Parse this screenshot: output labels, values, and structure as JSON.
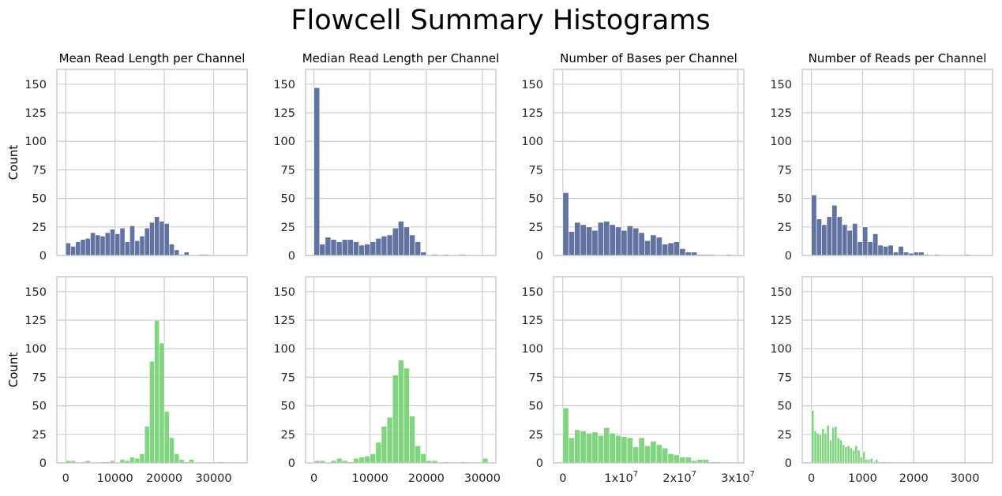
{
  "figure": {
    "title": "Flowcell Summary Histograms",
    "colors": {
      "top": "#5a6b9c",
      "bottom": "#6cce6a",
      "grid": "#cccccc",
      "spine": "#cccccc"
    }
  },
  "chart_data": [
    {
      "type": "bar",
      "subtype": "histogram",
      "row": 1,
      "col": 1,
      "title": "Mean Read Length per Channel",
      "ylabel": "Count",
      "ylim": [
        0,
        163
      ],
      "yticks": [
        0,
        25,
        50,
        75,
        100,
        125,
        150
      ],
      "xlim": [
        -1800,
        36800
      ],
      "xticks": [
        0,
        10000,
        20000,
        30000
      ],
      "show_xticks": false,
      "bin_start": 0,
      "bin_width": 1000,
      "color": "top",
      "values": [
        11,
        8,
        12,
        14,
        15,
        20,
        18,
        17,
        20,
        23,
        19,
        24,
        12,
        26,
        13,
        17,
        24,
        29,
        34,
        30,
        28,
        10,
        5,
        1,
        3,
        0,
        0,
        1,
        1,
        0,
        0,
        0,
        0,
        0,
        0
      ]
    },
    {
      "type": "bar",
      "subtype": "histogram",
      "row": 1,
      "col": 2,
      "title": "Median Read Length per Channel",
      "ylabel": "",
      "ylim": [
        0,
        163
      ],
      "yticks": [
        0,
        25,
        50,
        75,
        100,
        125,
        150
      ],
      "xlim": [
        -1500,
        32400
      ],
      "xticks": [
        0,
        10000,
        20000,
        30000
      ],
      "show_xticks": false,
      "bin_start": 0,
      "bin_width": 1000,
      "color": "top",
      "values": [
        147,
        10,
        16,
        14,
        12,
        14,
        14,
        12,
        9,
        10,
        12,
        15,
        17,
        18,
        24,
        30,
        25,
        18,
        12,
        3,
        0,
        1,
        0,
        1,
        0,
        0,
        1,
        0,
        0,
        0,
        0
      ]
    },
    {
      "type": "bar",
      "subtype": "histogram",
      "row": 1,
      "col": 3,
      "title": "Number of Bases per Channel",
      "ylabel": "",
      "ylim": [
        0,
        163
      ],
      "yticks": [
        0,
        25,
        50,
        75,
        100,
        125,
        150
      ],
      "xlim": [
        -1600000,
        31000000
      ],
      "xticks": [
        0,
        10000000,
        20000000,
        30000000
      ],
      "show_xticks": false,
      "bin_start": 0,
      "bin_width": 1000000,
      "color": "top",
      "values": [
        55,
        21,
        29,
        27,
        25,
        22,
        29,
        30,
        27,
        25,
        22,
        26,
        24,
        20,
        13,
        18,
        16,
        10,
        11,
        12,
        6,
        3,
        3,
        1,
        1,
        1,
        0,
        0,
        1,
        0
      ]
    },
    {
      "type": "bar",
      "subtype": "histogram",
      "row": 1,
      "col": 4,
      "title": "Number of Reads per Channel",
      "ylabel": "",
      "ylim": [
        0,
        163
      ],
      "yticks": [
        0,
        25,
        50,
        75,
        100,
        125,
        150
      ],
      "xlim": [
        -180,
        3540
      ],
      "xticks": [
        0,
        1000,
        2000,
        3000
      ],
      "show_xticks": false,
      "bin_start": 0,
      "bin_width": 100,
      "color": "top",
      "values": [
        53,
        32,
        27,
        34,
        44,
        34,
        27,
        22,
        28,
        12,
        25,
        12,
        19,
        9,
        8,
        9,
        3,
        8,
        3,
        2,
        3,
        3,
        1,
        0,
        1,
        0,
        0,
        0,
        0,
        0,
        1,
        0,
        0,
        0
      ]
    },
    {
      "type": "bar",
      "subtype": "histogram",
      "row": 2,
      "col": 1,
      "title": "",
      "ylabel": "Count",
      "ylim": [
        0,
        163
      ],
      "yticks": [
        0,
        25,
        50,
        75,
        100,
        125,
        150
      ],
      "xlim": [
        -1800,
        36800
      ],
      "xticks": [
        0,
        10000,
        20000,
        30000
      ],
      "xticklabels": [
        "0",
        "10000",
        "20000",
        "30000"
      ],
      "show_xticks": true,
      "bin_start": 0,
      "bin_width": 1000,
      "color": "bottom",
      "values": [
        2,
        2,
        0,
        1,
        2,
        0,
        0,
        1,
        1,
        2,
        0,
        3,
        2,
        5,
        4,
        8,
        32,
        89,
        125,
        105,
        45,
        22,
        8,
        3,
        1,
        3,
        0,
        0,
        0,
        0,
        0,
        1,
        0,
        0,
        0
      ]
    },
    {
      "type": "bar",
      "subtype": "histogram",
      "row": 2,
      "col": 2,
      "title": "",
      "ylabel": "",
      "ylim": [
        0,
        163
      ],
      "yticks": [
        0,
        25,
        50,
        75,
        100,
        125,
        150
      ],
      "xlim": [
        -1500,
        32400
      ],
      "xticks": [
        0,
        10000,
        20000,
        30000
      ],
      "xticklabels": [
        "0",
        "10000",
        "20000",
        "30000"
      ],
      "show_xticks": true,
      "bin_start": 0,
      "bin_width": 1000,
      "color": "bottom",
      "values": [
        2,
        2,
        0,
        2,
        4,
        2,
        1,
        4,
        5,
        6,
        8,
        18,
        32,
        40,
        77,
        90,
        83,
        41,
        15,
        8,
        2,
        2,
        0,
        1,
        0,
        0,
        1,
        0,
        0,
        0,
        4
      ]
    },
    {
      "type": "bar",
      "subtype": "histogram",
      "row": 2,
      "col": 3,
      "title": "",
      "ylabel": "",
      "ylim": [
        0,
        163
      ],
      "yticks": [
        0,
        25,
        50,
        75,
        100,
        125,
        150
      ],
      "xlim": [
        -1600000,
        31000000
      ],
      "xticks": [
        0,
        10000000,
        20000000,
        30000000
      ],
      "xticklabels": [
        "0",
        "1x10⁷",
        "2x10⁷",
        "3x10⁷"
      ],
      "show_xticks": true,
      "bin_start": 0,
      "bin_width": 1000000,
      "color": "bottom",
      "values": [
        48,
        22,
        29,
        28,
        26,
        27,
        24,
        31,
        26,
        24,
        23,
        22,
        14,
        22,
        15,
        19,
        16,
        13,
        8,
        7,
        5,
        5,
        2,
        3,
        3,
        1,
        1,
        0,
        0,
        0
      ]
    },
    {
      "type": "bar",
      "subtype": "histogram",
      "row": 2,
      "col": 4,
      "title": "",
      "ylabel": "",
      "ylim": [
        0,
        163
      ],
      "yticks": [
        0,
        25,
        50,
        75,
        100,
        125,
        150
      ],
      "xlim": [
        -180,
        3540
      ],
      "xticks": [
        0,
        1000,
        2000,
        3000
      ],
      "xticklabels": [
        "0",
        "1000",
        "2000",
        "3000"
      ],
      "show_xticks": true,
      "bin_start": 0,
      "bin_width": 50,
      "color": "bottom",
      "values": [
        46,
        28,
        26,
        25,
        30,
        26,
        33,
        20,
        31,
        32,
        22,
        20,
        16,
        14,
        15,
        13,
        11,
        15,
        11,
        5,
        10,
        3,
        3,
        4,
        1,
        3,
        1,
        1,
        1,
        0,
        1,
        0,
        0,
        0,
        0,
        0,
        0,
        0,
        0,
        0,
        0,
        0,
        0,
        0,
        0,
        0,
        0,
        0,
        0,
        0,
        0,
        0,
        0,
        0,
        0,
        0,
        0,
        0,
        0,
        0,
        0,
        0,
        0,
        0,
        0,
        0,
        0,
        0
      ]
    }
  ]
}
